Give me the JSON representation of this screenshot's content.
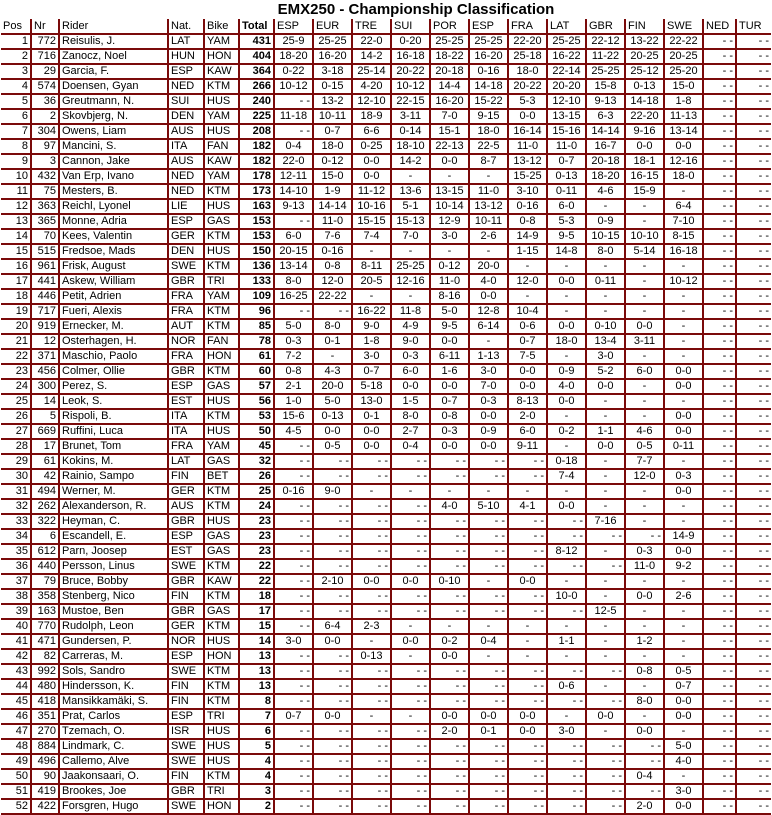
{
  "title": "EMX250 - Championship Classification",
  "colors": {
    "border": "#7a0a0a"
  },
  "columns": [
    "Pos",
    "Nr",
    "Rider",
    "Nat.",
    "Bike",
    "Total",
    "ESP",
    "EUR",
    "TRE",
    "SUI",
    "POR",
    "ESP",
    "FRA",
    "LAT",
    "GBR",
    "FIN",
    "SWE",
    "NED",
    "TUR"
  ],
  "rows": [
    [
      "1",
      "772",
      "Reisulis, J.",
      "LAT",
      "YAM",
      "431",
      "25-9",
      "25-25",
      "22-0",
      "0-20",
      "25-25",
      "25-25",
      "22-20",
      "25-25",
      "22-12",
      "13-22",
      "22-22",
      "- -",
      "- -"
    ],
    [
      "2",
      "716",
      "Zanocz, Noel",
      "HUN",
      "HON",
      "404",
      "18-20",
      "16-20",
      "14-2",
      "16-18",
      "18-22",
      "16-20",
      "25-18",
      "16-22",
      "11-22",
      "20-25",
      "20-25",
      "- -",
      "- -"
    ],
    [
      "3",
      "29",
      "Garcia, F.",
      "ESP",
      "KAW",
      "364",
      "0-22",
      "3-18",
      "25-14",
      "20-22",
      "20-18",
      "0-16",
      "18-0",
      "22-14",
      "25-25",
      "25-12",
      "25-20",
      "- -",
      "- -"
    ],
    [
      "4",
      "574",
      "Doensen, Gyan",
      "NED",
      "KTM",
      "266",
      "10-12",
      "0-15",
      "4-20",
      "10-12",
      "14-4",
      "14-18",
      "20-22",
      "20-20",
      "15-8",
      "0-13",
      "15-0",
      "- -",
      "- -"
    ],
    [
      "5",
      "36",
      "Greutmann, N.",
      "SUI",
      "HUS",
      "240",
      "- -",
      "13-2",
      "12-10",
      "22-15",
      "16-20",
      "15-22",
      "5-3",
      "12-10",
      "9-13",
      "14-18",
      "1-8",
      "- -",
      "- -"
    ],
    [
      "6",
      "2",
      "Skovbjerg, N.",
      "DEN",
      "YAM",
      "225",
      "11-18",
      "10-11",
      "18-9",
      "3-11",
      "7-0",
      "9-15",
      "0-0",
      "13-15",
      "6-3",
      "22-20",
      "11-13",
      "- -",
      "- -"
    ],
    [
      "7",
      "304",
      "Owens, Liam",
      "AUS",
      "HUS",
      "208",
      "- -",
      "0-7",
      "6-6",
      "0-14",
      "15-1",
      "18-0",
      "16-14",
      "15-16",
      "14-14",
      "9-16",
      "13-14",
      "- -",
      "- -"
    ],
    [
      "8",
      "97",
      "Mancini, S.",
      "ITA",
      "FAN",
      "182",
      "0-4",
      "18-0",
      "0-25",
      "18-10",
      "22-13",
      "22-5",
      "11-0",
      "11-0",
      "16-7",
      "0-0",
      "0-0",
      "- -",
      "- -"
    ],
    [
      "9",
      "3",
      "Cannon, Jake",
      "AUS",
      "KAW",
      "182",
      "22-0",
      "0-12",
      "0-0",
      "14-2",
      "0-0",
      "8-7",
      "13-12",
      "0-7",
      "20-18",
      "18-1",
      "12-16",
      "- -",
      "- -"
    ],
    [
      "10",
      "432",
      "Van Erp, Ivano",
      "NED",
      "YAM",
      "178",
      "12-11",
      "15-0",
      "0-0",
      "-",
      "-",
      "-",
      "15-25",
      "0-13",
      "18-20",
      "16-15",
      "18-0",
      "- -",
      "- -"
    ],
    [
      "11",
      "75",
      "Mesters, B.",
      "NED",
      "KTM",
      "173",
      "14-10",
      "1-9",
      "11-12",
      "13-6",
      "13-15",
      "11-0",
      "3-10",
      "0-11",
      "4-6",
      "15-9",
      "-",
      "- -",
      "- -"
    ],
    [
      "12",
      "363",
      "Reichl, Lyonel",
      "LIE",
      "HUS",
      "163",
      "9-13",
      "14-14",
      "10-16",
      "5-1",
      "10-14",
      "13-12",
      "0-16",
      "6-0",
      "-",
      "-",
      "6-4",
      "- -",
      "- -"
    ],
    [
      "13",
      "365",
      "Monne, Adria",
      "ESP",
      "GAS",
      "153",
      "- -",
      "11-0",
      "15-15",
      "15-13",
      "12-9",
      "10-11",
      "0-8",
      "5-3",
      "0-9",
      "-",
      "7-10",
      "- -",
      "- -"
    ],
    [
      "14",
      "70",
      "Kees, Valentin",
      "GER",
      "KTM",
      "153",
      "6-0",
      "7-6",
      "7-4",
      "7-0",
      "3-0",
      "2-6",
      "14-9",
      "9-5",
      "10-15",
      "10-10",
      "8-15",
      "- -",
      "- -"
    ],
    [
      "15",
      "515",
      "Fredsoe, Mads",
      "DEN",
      "HUS",
      "150",
      "20-15",
      "0-16",
      "-",
      "-",
      "-",
      "-",
      "1-15",
      "14-8",
      "8-0",
      "5-14",
      "16-18",
      "- -",
      "- -"
    ],
    [
      "16",
      "961",
      "Frisk, August",
      "SWE",
      "KTM",
      "136",
      "13-14",
      "0-8",
      "8-11",
      "25-25",
      "0-12",
      "20-0",
      "-",
      "-",
      "-",
      "-",
      "-",
      "- -",
      "- -"
    ],
    [
      "17",
      "441",
      "Askew, William",
      "GBR",
      "TRI",
      "133",
      "8-0",
      "12-0",
      "20-5",
      "12-16",
      "11-0",
      "4-0",
      "12-0",
      "0-0",
      "0-11",
      "-",
      "10-12",
      "- -",
      "- -"
    ],
    [
      "18",
      "446",
      "Petit, Adrien",
      "FRA",
      "YAM",
      "109",
      "16-25",
      "22-22",
      "-",
      "-",
      "8-16",
      "0-0",
      "-",
      "-",
      "-",
      "-",
      "-",
      "- -",
      "- -"
    ],
    [
      "19",
      "717",
      "Fueri, Alexis",
      "FRA",
      "KTM",
      "96",
      "- -",
      "- -",
      "16-22",
      "11-8",
      "5-0",
      "12-8",
      "10-4",
      "-",
      "-",
      "-",
      "-",
      "- -",
      "- -"
    ],
    [
      "20",
      "919",
      "Ernecker, M.",
      "AUT",
      "KTM",
      "85",
      "5-0",
      "8-0",
      "9-0",
      "4-9",
      "9-5",
      "6-14",
      "0-6",
      "0-0",
      "0-10",
      "0-0",
      "-",
      "- -",
      "- -"
    ],
    [
      "21",
      "12",
      "Osterhagen, H.",
      "NOR",
      "FAN",
      "78",
      "0-3",
      "0-1",
      "1-8",
      "9-0",
      "0-0",
      "-",
      "0-7",
      "18-0",
      "13-4",
      "3-11",
      "-",
      "- -",
      "- -"
    ],
    [
      "22",
      "371",
      "Maschio, Paolo",
      "FRA",
      "HON",
      "61",
      "7-2",
      "-",
      "3-0",
      "0-3",
      "6-11",
      "1-13",
      "7-5",
      "-",
      "3-0",
      "-",
      "-",
      "- -",
      "- -"
    ],
    [
      "23",
      "456",
      "Colmer, Ollie",
      "GBR",
      "KTM",
      "60",
      "0-8",
      "4-3",
      "0-7",
      "6-0",
      "1-6",
      "3-0",
      "0-0",
      "0-9",
      "5-2",
      "6-0",
      "0-0",
      "- -",
      "- -"
    ],
    [
      "24",
      "300",
      "Perez, S.",
      "ESP",
      "GAS",
      "57",
      "2-1",
      "20-0",
      "5-18",
      "0-0",
      "0-0",
      "7-0",
      "0-0",
      "4-0",
      "0-0",
      "-",
      "0-0",
      "- -",
      "- -"
    ],
    [
      "25",
      "14",
      "Leok, S.",
      "EST",
      "HUS",
      "56",
      "1-0",
      "5-0",
      "13-0",
      "1-5",
      "0-7",
      "0-3",
      "8-13",
      "0-0",
      "-",
      "-",
      "-",
      "- -",
      "- -"
    ],
    [
      "26",
      "5",
      "Rispoli, B.",
      "ITA",
      "KTM",
      "53",
      "15-6",
      "0-13",
      "0-1",
      "8-0",
      "0-8",
      "0-0",
      "2-0",
      "-",
      "-",
      "-",
      "0-0",
      "- -",
      "- -"
    ],
    [
      "27",
      "669",
      "Ruffini, Luca",
      "ITA",
      "HUS",
      "50",
      "4-5",
      "0-0",
      "0-0",
      "2-7",
      "0-3",
      "0-9",
      "6-0",
      "0-2",
      "1-1",
      "4-6",
      "0-0",
      "- -",
      "- -"
    ],
    [
      "28",
      "17",
      "Brunet, Tom",
      "FRA",
      "YAM",
      "45",
      "- -",
      "0-5",
      "0-0",
      "0-4",
      "0-0",
      "0-0",
      "9-11",
      "-",
      "0-0",
      "0-5",
      "0-11",
      "- -",
      "- -"
    ],
    [
      "29",
      "61",
      "Kokins, M.",
      "LAT",
      "GAS",
      "32",
      "- -",
      "- -",
      "- -",
      "- -",
      "- -",
      "- -",
      "- -",
      "0-18",
      "-",
      "7-7",
      "-",
      "- -",
      "- -"
    ],
    [
      "30",
      "42",
      "Rainio, Sampo",
      "FIN",
      "BET",
      "26",
      "- -",
      "- -",
      "- -",
      "- -",
      "- -",
      "- -",
      "- -",
      "7-4",
      "-",
      "12-0",
      "0-3",
      "- -",
      "- -"
    ],
    [
      "31",
      "494",
      "Werner, M.",
      "GER",
      "KTM",
      "25",
      "0-16",
      "9-0",
      "-",
      "-",
      "-",
      "-",
      "-",
      "-",
      "-",
      "-",
      "0-0",
      "- -",
      "- -"
    ],
    [
      "32",
      "262",
      "Alexanderson, R.",
      "AUS",
      "KTM",
      "24",
      "- -",
      "- -",
      "- -",
      "- -",
      "4-0",
      "5-10",
      "4-1",
      "0-0",
      "-",
      "-",
      "-",
      "- -",
      "- -"
    ],
    [
      "33",
      "322",
      "Heyman, C.",
      "GBR",
      "HUS",
      "23",
      "- -",
      "- -",
      "- -",
      "- -",
      "- -",
      "- -",
      "- -",
      "- -",
      "7-16",
      "-",
      "-",
      "- -",
      "- -"
    ],
    [
      "34",
      "6",
      "Escandell, E.",
      "ESP",
      "GAS",
      "23",
      "- -",
      "- -",
      "- -",
      "- -",
      "- -",
      "- -",
      "- -",
      "- -",
      "- -",
      "- -",
      "14-9",
      "- -",
      "- -"
    ],
    [
      "35",
      "612",
      "Parn, Joosep",
      "EST",
      "GAS",
      "23",
      "- -",
      "- -",
      "- -",
      "- -",
      "- -",
      "- -",
      "- -",
      "8-12",
      "-",
      "0-3",
      "0-0",
      "- -",
      "- -"
    ],
    [
      "36",
      "440",
      "Persson, Linus",
      "SWE",
      "KTM",
      "22",
      "- -",
      "- -",
      "- -",
      "- -",
      "- -",
      "- -",
      "- -",
      "- -",
      "- -",
      "11-0",
      "9-2",
      "- -",
      "- -"
    ],
    [
      "37",
      "79",
      "Bruce, Bobby",
      "GBR",
      "KAW",
      "22",
      "- -",
      "2-10",
      "0-0",
      "0-0",
      "0-10",
      "-",
      "0-0",
      "-",
      "-",
      "-",
      "-",
      "- -",
      "- -"
    ],
    [
      "38",
      "358",
      "Stenberg, Nico",
      "FIN",
      "KTM",
      "18",
      "- -",
      "- -",
      "- -",
      "- -",
      "- -",
      "- -",
      "- -",
      "10-0",
      "-",
      "0-0",
      "2-6",
      "- -",
      "- -"
    ],
    [
      "39",
      "163",
      "Mustoe, Ben",
      "GBR",
      "GAS",
      "17",
      "- -",
      "- -",
      "- -",
      "- -",
      "- -",
      "- -",
      "- -",
      "- -",
      "12-5",
      "-",
      "-",
      "- -",
      "- -"
    ],
    [
      "40",
      "770",
      "Rudolph, Leon",
      "GER",
      "KTM",
      "15",
      "- -",
      "6-4",
      "2-3",
      "-",
      "-",
      "-",
      "-",
      "-",
      "-",
      "-",
      "-",
      "- -",
      "- -"
    ],
    [
      "41",
      "471",
      "Gundersen, P.",
      "NOR",
      "HUS",
      "14",
      "3-0",
      "0-0",
      "-",
      "0-0",
      "0-2",
      "0-4",
      "-",
      "1-1",
      "-",
      "1-2",
      "-",
      "- -",
      "- -"
    ],
    [
      "42",
      "82",
      "Carreras, M.",
      "ESP",
      "HON",
      "13",
      "- -",
      "- -",
      "0-13",
      "-",
      "0-0",
      "-",
      "-",
      "-",
      "-",
      "-",
      "-",
      "- -",
      "- -"
    ],
    [
      "43",
      "992",
      "Sols, Sandro",
      "SWE",
      "KTM",
      "13",
      "- -",
      "- -",
      "- -",
      "- -",
      "- -",
      "- -",
      "- -",
      "- -",
      "- -",
      "0-8",
      "0-5",
      "- -",
      "- -"
    ],
    [
      "44",
      "480",
      "Hindersson, K.",
      "FIN",
      "KTM",
      "13",
      "- -",
      "- -",
      "- -",
      "- -",
      "- -",
      "- -",
      "- -",
      "0-6",
      "-",
      "-",
      "0-7",
      "- -",
      "- -"
    ],
    [
      "45",
      "418",
      "Mansikkamäki, S.",
      "FIN",
      "KTM",
      "8",
      "- -",
      "- -",
      "- -",
      "- -",
      "- -",
      "- -",
      "- -",
      "- -",
      "- -",
      "8-0",
      "0-0",
      "- -",
      "- -"
    ],
    [
      "46",
      "351",
      "Prat, Carlos",
      "ESP",
      "TRI",
      "7",
      "0-7",
      "0-0",
      "-",
      "-",
      "0-0",
      "0-0",
      "0-0",
      "-",
      "0-0",
      "-",
      "0-0",
      "- -",
      "- -"
    ],
    [
      "47",
      "270",
      "Tzemach, O.",
      "ISR",
      "HUS",
      "6",
      "- -",
      "- -",
      "- -",
      "- -",
      "2-0",
      "0-1",
      "0-0",
      "3-0",
      "-",
      "0-0",
      "-",
      "- -",
      "- -"
    ],
    [
      "48",
      "884",
      "Lindmark, C.",
      "SWE",
      "HUS",
      "5",
      "- -",
      "- -",
      "- -",
      "- -",
      "- -",
      "- -",
      "- -",
      "- -",
      "- -",
      "- -",
      "5-0",
      "- -",
      "- -"
    ],
    [
      "49",
      "496",
      "Callemo, Alve",
      "SWE",
      "HUS",
      "4",
      "- -",
      "- -",
      "- -",
      "- -",
      "- -",
      "- -",
      "- -",
      "- -",
      "- -",
      "- -",
      "4-0",
      "- -",
      "- -"
    ],
    [
      "50",
      "90",
      "Jaakonsaari, O.",
      "FIN",
      "KTM",
      "4",
      "- -",
      "- -",
      "- -",
      "- -",
      "- -",
      "- -",
      "- -",
      "- -",
      "- -",
      "0-4",
      "-",
      "- -",
      "- -"
    ],
    [
      "51",
      "419",
      "Brookes, Joe",
      "GBR",
      "TRI",
      "3",
      "- -",
      "- -",
      "- -",
      "- -",
      "- -",
      "- -",
      "- -",
      "- -",
      "- -",
      "- -",
      "3-0",
      "- -",
      "- -"
    ],
    [
      "52",
      "422",
      "Forsgren, Hugo",
      "SWE",
      "HON",
      "2",
      "- -",
      "- -",
      "- -",
      "- -",
      "- -",
      "- -",
      "- -",
      "- -",
      "- -",
      "2-0",
      "0-0",
      "- -",
      "- -"
    ]
  ]
}
